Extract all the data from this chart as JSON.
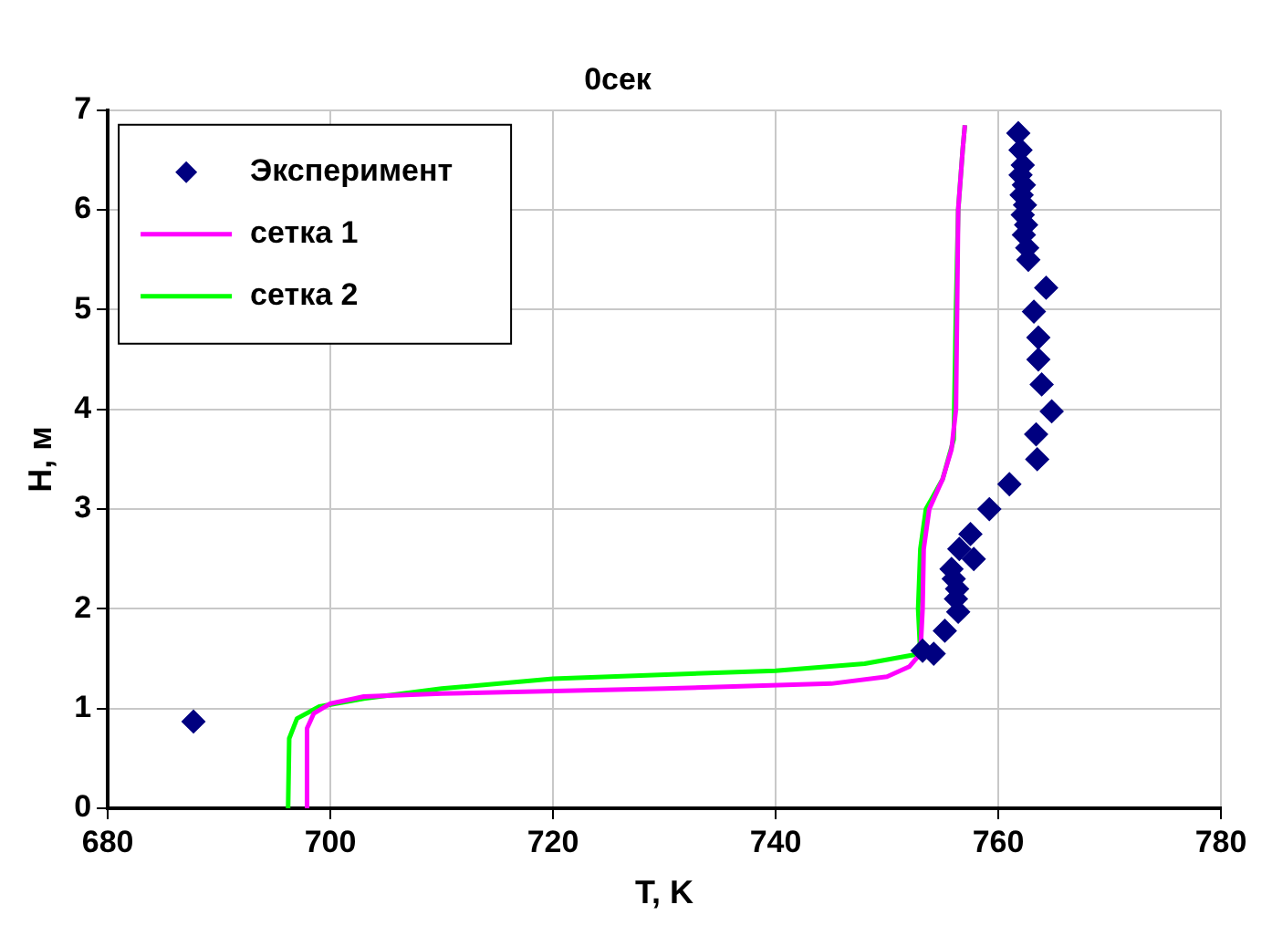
{
  "chart_data": {
    "type": "scatter",
    "title": "0сек",
    "xlabel": "T, K",
    "ylabel": "H, м",
    "xlim": [
      680,
      780
    ],
    "xticks": [
      680,
      700,
      720,
      740,
      760,
      780
    ],
    "ylim": [
      0,
      7
    ],
    "yticks": [
      0,
      1,
      2,
      3,
      4,
      5,
      6,
      7
    ],
    "grid": true,
    "legend": "top left",
    "marker": "diamond",
    "series": [
      {
        "name": "Эксперимент",
        "type": "scatter",
        "color": "#000080",
        "x": [
          761.8,
          762,
          762.2,
          762,
          762.3,
          762.1,
          762.4,
          762.2,
          762.5,
          762.3,
          762.6,
          762.7,
          764.3,
          763.2,
          763.6,
          763.6,
          763.9,
          764.8,
          763.4,
          763.5,
          761,
          759.2,
          757.5,
          756.5,
          757.8,
          755.8,
          756,
          756.3,
          756.2,
          756.4,
          755.2,
          753.2,
          754.2,
          687.7
        ],
        "values": [
          6.77,
          6.6,
          6.45,
          6.35,
          6.25,
          6.15,
          6.05,
          5.95,
          5.85,
          5.75,
          5.62,
          5.5,
          5.22,
          4.98,
          4.72,
          4.5,
          4.25,
          3.98,
          3.75,
          3.5,
          3.25,
          3.0,
          2.75,
          2.6,
          2.5,
          2.4,
          2.3,
          2.2,
          2.1,
          1.97,
          1.78,
          1.58,
          1.55,
          0.87
        ]
      },
      {
        "name": "сетка 1",
        "type": "line",
        "color": "#ff00ff",
        "marker": "none",
        "x": [
          697.9,
          697.9,
          698.5,
          700,
          703,
          710,
          730,
          745,
          750,
          752,
          753,
          753.2,
          753.3,
          753.8,
          755,
          755.8,
          756.2,
          756.3,
          756.4,
          756.8,
          757
        ],
        "values": [
          0,
          0.8,
          0.95,
          1.05,
          1.12,
          1.15,
          1.2,
          1.25,
          1.32,
          1.42,
          1.55,
          2.0,
          2.6,
          3.0,
          3.3,
          3.6,
          4.0,
          5.0,
          6.0,
          6.6,
          6.85
        ]
      },
      {
        "name": "сетка 2",
        "type": "line",
        "color": "#00ff00",
        "marker": "none",
        "x": [
          696.2,
          696.3,
          697,
          699,
          703,
          710,
          720,
          740,
          748,
          753,
          752.8,
          753,
          753.5,
          755,
          756,
          756.2,
          756.4,
          756.8,
          757
        ],
        "values": [
          0,
          0.7,
          0.9,
          1.02,
          1.1,
          1.2,
          1.3,
          1.38,
          1.45,
          1.55,
          2.0,
          2.6,
          3.0,
          3.3,
          3.7,
          5.0,
          6.0,
          6.6,
          6.85
        ]
      }
    ]
  }
}
